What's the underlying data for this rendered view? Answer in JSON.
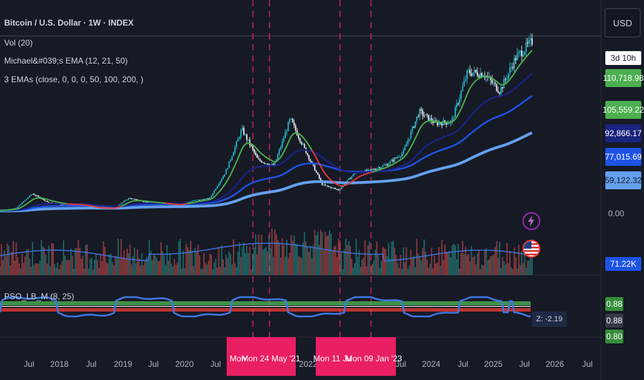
{
  "legend": {
    "title": "Bitcoin / U.S. Dollar · 1W · INDEX",
    "vol": "Vol (20)",
    "ema_michael": "Michael&#039;s EMA (12, 21, 50)",
    "ema_three": "3 EMAs (close, 0, 0, 0, 50, 100, 200, )",
    "osc": "PSO_LB_M (8, 25)"
  },
  "price_axis": {
    "currency": "USD",
    "countdown": "3d 10h",
    "labels": [
      {
        "text": "110,718.98",
        "color": "#4caf50",
        "fg": "#ffffff"
      },
      {
        "text": "105,559.22",
        "color": "#4caf50",
        "fg": "#ffffff"
      },
      {
        "text": "92,866.17",
        "color": "#1a237e",
        "fg": "#ffffff"
      },
      {
        "text": "77,015.69",
        "color": "#1e53e5",
        "fg": "#ffffff"
      },
      {
        "text": "59,122.32",
        "color": "#64a0ef",
        "fg": "#131722"
      }
    ],
    "zero": "0.00",
    "volume": "71.22K",
    "osc_labels": [
      {
        "text": "0.88",
        "color": "#388e3c"
      },
      {
        "text": "0.88",
        "color": "#363a45"
      },
      {
        "text": "0.80",
        "color": "#388e3c"
      }
    ],
    "z_value": "Z: -2.19"
  },
  "time_axis": {
    "labels": [
      "Jul",
      "2018",
      "Jul",
      "2019",
      "Jul",
      "2020",
      "Jul",
      "2022",
      "Jul",
      "2024",
      "Jul",
      "2025",
      "Jul",
      "2026",
      "Jul"
    ],
    "highlights": [
      {
        "a": "Mon",
        "b": "Mon 24 May '21"
      },
      {
        "a": "Mon 11 Ju",
        "b": "Mon 09 Jan '23"
      }
    ]
  },
  "icons": [
    "lightning-icon",
    "us-flag-icon"
  ],
  "colors": {
    "background": "#161a25",
    "ema_short": "#4caf50",
    "ema_red": "#e53935",
    "ema50": "#1a237e",
    "ema100": "#1e53e5",
    "ema200": "#64a0ef",
    "highlight": "#e91e63"
  },
  "chart_data": {
    "type": "line",
    "x": [
      "2017-06",
      "2017-09",
      "2017-12",
      "2018-03",
      "2018-06",
      "2018-09",
      "2018-12",
      "2019-03",
      "2019-06",
      "2019-09",
      "2019-12",
      "2020-03",
      "2020-06",
      "2020-09",
      "2020-12",
      "2021-03",
      "2021-05",
      "2021-07",
      "2021-11",
      "2022-03",
      "2022-06",
      "2022-11",
      "2023-03",
      "2023-06",
      "2023-10",
      "2024-01",
      "2024-03",
      "2024-06",
      "2024-09",
      "2024-12",
      "2025-02",
      "2025-04",
      "2025-06",
      "2025-07"
    ],
    "series": [
      {
        "values": [
          2500,
          4200,
          14000,
          8000,
          6300,
          6500,
          3700,
          4000,
          11000,
          8300,
          7200,
          6000,
          9300,
          10800,
          29000,
          58000,
          37000,
          33000,
          65000,
          42000,
          20000,
          16500,
          28000,
          30000,
          34000,
          42000,
          70000,
          62000,
          63000,
          97000,
          96000,
          84000,
          107000,
          118000
        ]
      }
    ],
    "ylim": [
      0,
      125000
    ]
  }
}
